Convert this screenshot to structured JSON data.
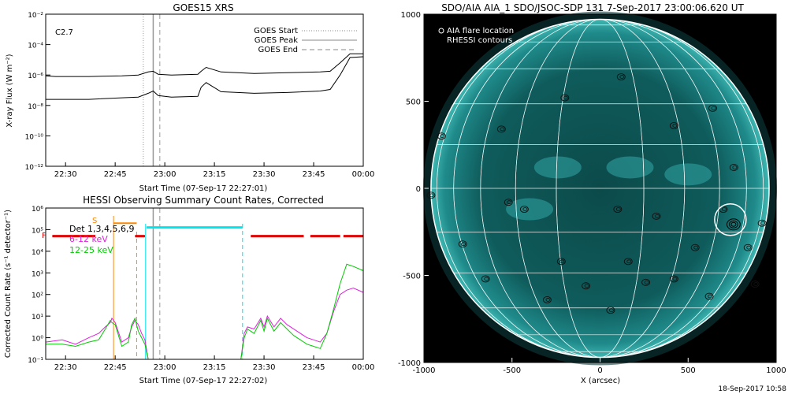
{
  "footer_timestamp": "18-Sep-2017 10:58",
  "chart_data": [
    {
      "type": "line",
      "title": "GOES15 XRS",
      "xlabel": "Start Time (07-Sep-17 22:27:01)",
      "ylabel": "X-ray Flux (W m⁻²)",
      "annotation": "C2.7",
      "x_ticks": [
        "22:30",
        "22:45",
        "23:00",
        "23:15",
        "23:30",
        "23:45",
        "00:00"
      ],
      "y_ticks": [
        "10⁻¹²",
        "10⁻¹⁰",
        "10⁻⁸",
        "10⁻⁶",
        "10⁻⁴",
        "10⁻²"
      ],
      "xlim_minutes": [
        -3,
        93
      ],
      "ylim_log10": [
        -12,
        -2
      ],
      "legend": [
        "GOES Start",
        "GOES Peak",
        "GOES End"
      ],
      "legend_position": "top-right",
      "markers_minutes": {
        "start": 26.5,
        "peak": 29.5,
        "end": 31.5
      },
      "series": [
        {
          "values_log10": {
            "minutes": [
              -3,
              0,
              10,
              20,
              25,
              28,
              29.5,
              31,
              35,
              43,
              44,
              45.5,
              50,
              60,
              70,
              80,
              83,
              86,
              89,
              93
            ],
            "flux": [
              -6.05,
              -6.1,
              -6.1,
              -6.05,
              -6.0,
              -5.8,
              -5.75,
              -5.95,
              -6.0,
              -5.95,
              -5.75,
              -5.5,
              -5.8,
              -5.9,
              -5.85,
              -5.8,
              -5.75,
              -5.2,
              -4.6,
              -4.6
            ]
          }
        },
        {
          "values_log10": {
            "minutes": [
              -3,
              0,
              10,
              20,
              25,
              28,
              29.5,
              31,
              35,
              43,
              44,
              45.5,
              50,
              60,
              70,
              80,
              83,
              86,
              89,
              93
            ],
            "flux": [
              -7.6,
              -7.6,
              -7.6,
              -7.5,
              -7.45,
              -7.2,
              -7.05,
              -7.35,
              -7.45,
              -7.4,
              -6.8,
              -6.5,
              -7.1,
              -7.2,
              -7.15,
              -7.05,
              -6.95,
              -6.0,
              -4.85,
              -4.8
            ]
          }
        }
      ]
    },
    {
      "type": "line",
      "title": "HESSI Observing Summary Count Rates, Corrected",
      "xlabel": "Start Time (07-Sep-17 22:27:02)",
      "ylabel": "Corrected Count Rate (s⁻¹ detector⁻¹)",
      "x_ticks": [
        "22:30",
        "22:45",
        "23:00",
        "23:15",
        "23:30",
        "23:45",
        "00:00"
      ],
      "y_ticks": [
        "10⁻¹",
        "10⁰",
        "10¹",
        "10²",
        "10³",
        "10⁴",
        "10⁵",
        "10⁶"
      ],
      "xlim_minutes": [
        -3,
        93
      ],
      "ylim_log10": [
        -1,
        6
      ],
      "legend": [
        {
          "label": "Det 1,3,4,5,6,9",
          "color": "#000000"
        },
        {
          "label": "6-12 keV",
          "color": "#e020e0"
        },
        {
          "label": "12-25 keV",
          "color": "#00cc00"
        }
      ],
      "legend_position": "top-left",
      "flag_labels": {
        "S": "S",
        "F": "F"
      },
      "vertical_lines_minutes": {
        "orange_solid": 17.5,
        "orange_dashed": 24.5,
        "cyan_solid": 27.2,
        "cyan_dashed": 56.5,
        "gray_solid": 29.5,
        "gray_dashed": 31.5
      },
      "series": [
        {
          "name": "6-12 keV",
          "color": "#e020e0",
          "values_log10": {
            "minutes": [
              -3,
              2,
              6,
              10,
              13,
              15,
              16.5,
              17,
              18,
              20,
              22,
              23,
              24,
              25,
              26,
              27,
              28,
              56,
              57,
              58,
              60,
              62,
              63,
              64,
              66,
              68,
              70,
              72,
              74,
              76,
              78,
              80,
              82,
              84,
              86,
              88,
              90,
              93
            ],
            "flux": [
              -0.2,
              -0.1,
              -0.3,
              0,
              0.2,
              0.5,
              0.7,
              0.9,
              0.7,
              -0.2,
              0,
              0.5,
              0.8,
              0.6,
              0.2,
              -0.1,
              -1,
              -1,
              0.2,
              0.5,
              0.4,
              0.9,
              0.5,
              1.0,
              0.5,
              0.9,
              0.6,
              0.4,
              0.2,
              0,
              -0.1,
              -0.2,
              0.2,
              1.2,
              2.0,
              2.2,
              2.3,
              2.1
            ]
          }
        },
        {
          "name": "12-25 keV",
          "color": "#00cc00",
          "values_log10": {
            "minutes": [
              -3,
              2,
              6,
              10,
              13,
              15,
              16.5,
              17,
              18,
              20,
              22,
              23,
              24,
              25,
              26,
              27,
              28,
              56,
              57,
              58,
              60,
              62,
              63,
              64,
              66,
              68,
              70,
              72,
              74,
              76,
              78,
              80,
              82,
              84,
              86,
              88,
              90,
              93
            ],
            "flux": [
              -0.3,
              -0.3,
              -0.4,
              -0.2,
              -0.1,
              0.4,
              0.8,
              0.7,
              0.6,
              -0.4,
              -0.2,
              0.6,
              0.9,
              0.3,
              0,
              -0.3,
              -1,
              -1,
              0,
              0.4,
              0.2,
              0.8,
              0.3,
              0.9,
              0.3,
              0.7,
              0.4,
              0.1,
              -0.1,
              -0.3,
              -0.4,
              -0.5,
              0.2,
              1.3,
              2.5,
              3.4,
              3.3,
              3.1
            ]
          }
        }
      ]
    },
    {
      "type": "image",
      "title": "SDO/AIA AIA_1 SDO/JSOC-SDP 131   7-Sep-2017 23:00:06.620 UT",
      "xlabel": "X (arcsec)",
      "x_ticks": [
        "-1000",
        "-500",
        "0",
        "500",
        "1000"
      ],
      "y_ticks": [
        "-1000",
        "-500",
        "0",
        "500",
        "1000"
      ],
      "xlim_arcsec": [
        -1000,
        1000
      ],
      "ylim_arcsec": [
        -1000,
        1000
      ],
      "legend": [
        "AIA flare location",
        "RHESSI contours"
      ],
      "legend_position": "top-left",
      "flare_location_arcsec": {
        "x": 740,
        "y": -180
      }
    }
  ]
}
